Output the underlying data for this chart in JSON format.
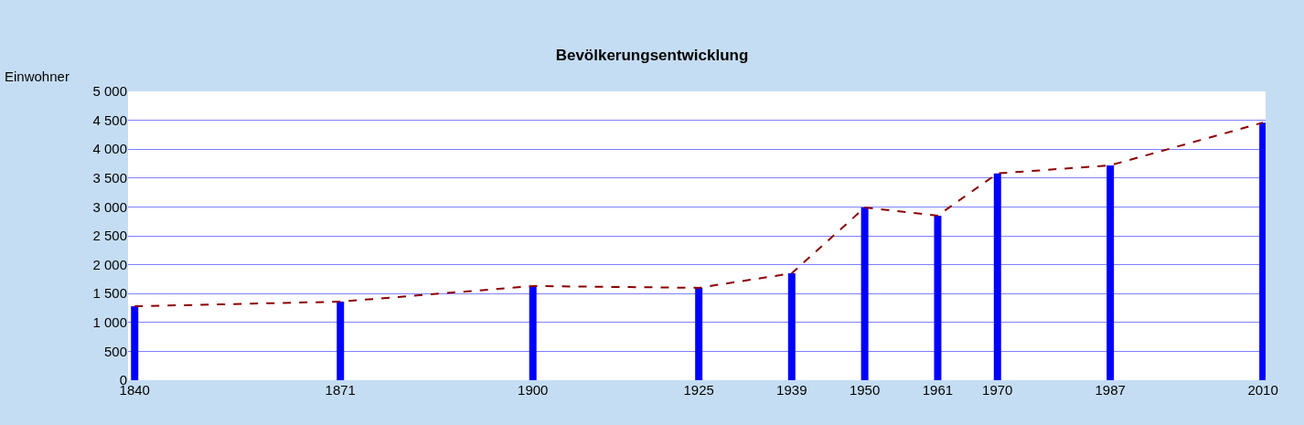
{
  "chart_data": {
    "type": "bar",
    "title": "Bevölkerungsentwicklung",
    "ylabel": "Einwohner",
    "x": [
      1840,
      1871,
      1900,
      1925,
      1939,
      1950,
      1961,
      1970,
      1987,
      2010
    ],
    "series": [
      {
        "color": "#0000ff",
        "values": [
          1280,
          1360,
          1630,
          1600,
          1850,
          2990,
          2850,
          3580,
          3720,
          4460
        ]
      },
      {
        "type": "line",
        "color": "#8b0000",
        "line_style": "dashed",
        "values": [
          1280,
          1360,
          1630,
          1600,
          1850,
          2990,
          2850,
          3580,
          3720,
          4460
        ]
      }
    ],
    "xlim": [
      1839,
      2010.4
    ],
    "xticks": [
      1840,
      1871,
      1900,
      1925,
      1939,
      1950,
      1961,
      1970,
      1987,
      2010
    ],
    "ylim": [
      0,
      5000
    ],
    "yticks": [
      0,
      500,
      {
        "value": 1000,
        "label": "1 000"
      },
      {
        "value": 1500,
        "label": "1 500"
      },
      {
        "value": 2000,
        "label": "2 000"
      },
      {
        "value": 2500,
        "label": "2 500"
      },
      {
        "value": 3000,
        "label": "3 000"
      },
      {
        "value": 3500,
        "label": "3 500"
      },
      {
        "value": 4000,
        "label": "4 000"
      },
      {
        "value": 4500,
        "label": "4 500"
      },
      {
        "value": 5000,
        "label": "5 000"
      }
    ],
    "grid": "y",
    "marker": "none"
  }
}
